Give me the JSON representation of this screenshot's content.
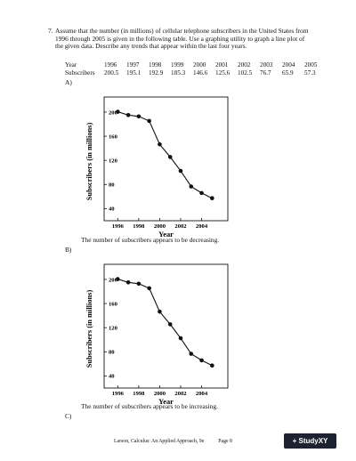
{
  "question": {
    "number": "7.",
    "text": "Assume that the number (in millions) of cellular telephone subscribers in the United States from 1996 through 2005 is given in the following table. Use a graphing utility to graph a line plot of the given data. Describe any trends that appear within the last four years."
  },
  "table": {
    "row1_label": "Year",
    "row2_label": "Subscribers",
    "years": [
      "1996",
      "1997",
      "1998",
      "1999",
      "2000",
      "2001",
      "2002",
      "2003",
      "2004",
      "2005"
    ],
    "subscribers": [
      "200.5",
      "195.1",
      "192.9",
      "185.3",
      "146.6",
      "125.6",
      "102.5",
      "76.7",
      "65.9",
      "57.3"
    ]
  },
  "options": {
    "a": "A)",
    "b": "B)",
    "c": "C)",
    "a_caption": "The number of subscribers appears to be decreasing.",
    "b_caption": "The number of subscribers appears to be increasing."
  },
  "chart_data": [
    {
      "type": "line",
      "x": [
        1996,
        1997,
        1998,
        1999,
        2000,
        2001,
        2002,
        2003,
        2004,
        2005
      ],
      "y": [
        200.5,
        195.1,
        192.9,
        185.3,
        146.6,
        125.6,
        102.5,
        76.7,
        65.9,
        57.3
      ],
      "xlabel": "Year",
      "ylabel": "Subscribers (in millions)",
      "xticks": [
        1996,
        1998,
        2000,
        2002,
        2004
      ],
      "yticks": [
        40,
        80,
        120,
        160,
        200
      ],
      "xlim": [
        1994.7,
        2006.5
      ],
      "ylim": [
        20,
        225
      ],
      "grid": false
    },
    {
      "type": "line",
      "x": [
        1996,
        1997,
        1998,
        1999,
        2000,
        2001,
        2002,
        2003,
        2004,
        2005
      ],
      "y": [
        200.5,
        195.1,
        192.9,
        185.3,
        146.6,
        125.6,
        102.5,
        76.7,
        65.9,
        57.3
      ],
      "xlabel": "Year",
      "ylabel": "Subscribers (in millions)",
      "xticks": [
        1996,
        1998,
        2000,
        2002,
        2004
      ],
      "yticks": [
        40,
        80,
        120,
        160,
        200
      ],
      "xlim": [
        1994.7,
        2006.5
      ],
      "ylim": [
        20,
        225
      ],
      "grid": false
    }
  ],
  "footer": {
    "book": "Larson, Calculus: An Applied Approach, 9e",
    "page": "Page 8"
  },
  "brand": "+ StudyXY"
}
